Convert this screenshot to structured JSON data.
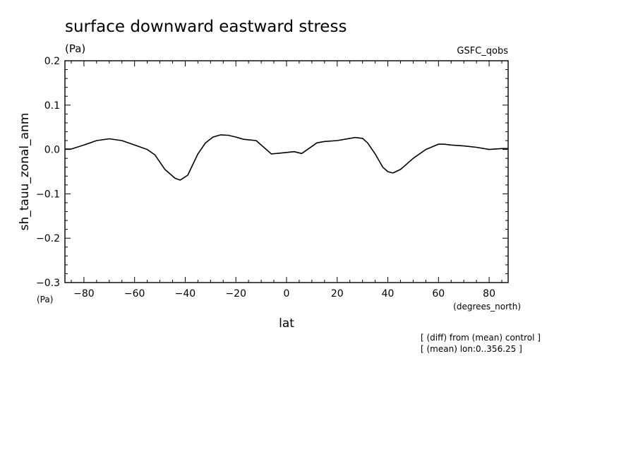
{
  "colors": {
    "line": "#000000",
    "background": "#ffffff"
  },
  "header": {
    "title": "surface downward eastward stress",
    "units": "(Pa)",
    "dataset": "GSFC_qobs"
  },
  "notes": {
    "line1": "[ (diff) from (mean) control ]",
    "line2": "[ (mean) lon:0..356.25 ]"
  },
  "chart_data": {
    "type": "line",
    "title": "surface downward eastward stress",
    "xlabel": "lat",
    "xunits": "(degrees_north)",
    "ylabel": "sh_tauu_zonal_anm",
    "yunits": "(Pa)",
    "xlim": [
      -87.5,
      87.5
    ],
    "ylim": [
      -0.3,
      0.2
    ],
    "xticks": [
      -80,
      -60,
      -40,
      -20,
      0,
      20,
      40,
      60,
      80
    ],
    "xtick_labels": [
      "−80",
      "−60",
      "−40",
      "−20",
      "0",
      "20",
      "40",
      "60",
      "80"
    ],
    "yticks": [
      0.2,
      0.1,
      0.0,
      -0.1,
      -0.2,
      -0.3
    ],
    "ytick_labels": [
      "0.2",
      "0.1",
      "0.0",
      "−0.1",
      "−0.2",
      "−0.3"
    ],
    "grid": false,
    "series": [
      {
        "name": "GSFC_qobs",
        "x": [
          -87.5,
          -85,
          -80,
          -75,
          -70,
          -65,
          -60,
          -55,
          -52,
          -48,
          -44,
          -42,
          -39,
          -35,
          -32,
          -29,
          -26,
          -23,
          -20,
          -17,
          -12,
          -6,
          -2,
          3,
          6,
          12,
          15,
          20,
          25,
          27,
          30,
          32,
          35,
          38,
          40,
          42,
          45,
          50,
          55,
          60,
          62,
          65,
          70,
          75,
          80,
          85,
          87.5
        ],
        "y": [
          0.001,
          0.001,
          0.01,
          0.02,
          0.024,
          0.02,
          0.01,
          0.0,
          -0.012,
          -0.045,
          -0.065,
          -0.069,
          -0.058,
          -0.01,
          0.015,
          0.028,
          0.033,
          0.032,
          0.028,
          0.023,
          0.02,
          -0.01,
          -0.008,
          -0.005,
          -0.009,
          0.015,
          0.018,
          0.02,
          0.025,
          0.027,
          0.025,
          0.015,
          -0.01,
          -0.04,
          -0.05,
          -0.053,
          -0.045,
          -0.02,
          0.0,
          0.012,
          0.012,
          0.01,
          0.008,
          0.005,
          0.0,
          0.002,
          0.002
        ]
      }
    ]
  }
}
